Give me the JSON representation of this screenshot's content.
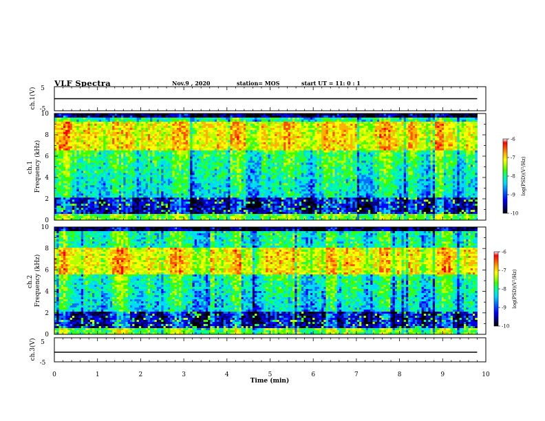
{
  "header": {
    "title": "VLF Spectra",
    "date": "Nov.9 , 2020",
    "station": "station= MOS",
    "start": "start UT = 11: 0 : 1"
  },
  "colors": {
    "spectrum": [
      "#000000",
      "#00007a",
      "#0000ff",
      "#0070ff",
      "#00d8ff",
      "#00ff9c",
      "#3cff00",
      "#b4ff00",
      "#ffff00",
      "#ffb000",
      "#ff5000",
      "#ff0000",
      "#ffffff"
    ]
  },
  "chart_data": [
    {
      "type": "line",
      "panel": "ch1-waveform",
      "ylabel": "ch.1(V)",
      "ylim": [
        -5,
        5
      ],
      "yticks": [
        "5",
        "-5"
      ],
      "series": [
        {
          "values_v": 0.0
        }
      ]
    },
    {
      "type": "heatmap",
      "panel": "ch1-spectrogram",
      "ylabel": "ch.1 Frequency (kHz)",
      "ylim": [
        0,
        10
      ],
      "yticks": [
        "0",
        "2",
        "4",
        "6",
        "8",
        "10"
      ],
      "xlim": [
        0,
        10
      ],
      "data_extent_min": 9.8,
      "intense_band_khz": [
        6.5,
        9.3
      ],
      "colorbar": {
        "label": "log(PSD)(V²/Hz)",
        "range": [
          -10,
          -6
        ],
        "ticks": [
          "-6",
          "-7",
          "-8",
          "-9",
          "-10"
        ]
      }
    },
    {
      "type": "heatmap",
      "panel": "ch2-spectrogram",
      "ylabel": "ch.2 Frequency (kHz)",
      "ylim": [
        0,
        10
      ],
      "yticks": [
        "0",
        "2",
        "4",
        "6",
        "8",
        "10"
      ],
      "xlim": [
        0,
        10
      ],
      "data_extent_min": 9.8,
      "intense_band_khz": [
        5.5,
        8.0
      ],
      "colorbar": {
        "label": "log(PSD)(V²/Hz)",
        "range": [
          -10,
          -6
        ],
        "ticks": [
          "-6",
          "-7",
          "-8",
          "-9",
          "-10"
        ]
      }
    },
    {
      "type": "line",
      "panel": "ch3-waveform",
      "ylabel": "ch.3(V)",
      "ylim": [
        -5,
        5
      ],
      "yticks": [
        "5",
        "-5"
      ],
      "series": [
        {
          "values_v": -1.0
        }
      ]
    }
  ],
  "xaxis": {
    "label": "Time (min)",
    "ticks": [
      "0",
      "1",
      "2",
      "3",
      "4",
      "5",
      "6",
      "7",
      "8",
      "9",
      "10"
    ],
    "range": [
      0,
      10
    ]
  }
}
